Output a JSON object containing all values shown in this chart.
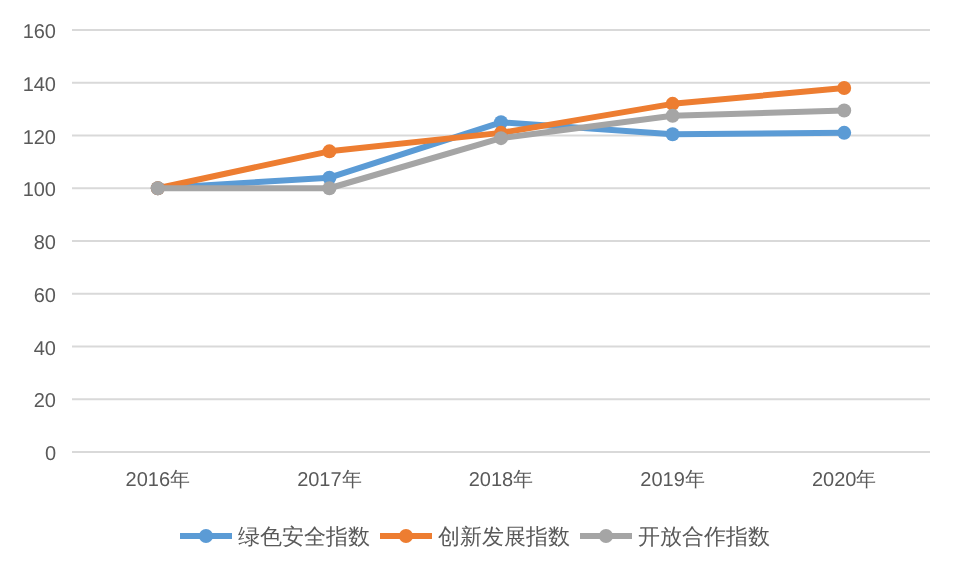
{
  "chart_data": {
    "type": "line",
    "categories": [
      "2016年",
      "2017年",
      "2018年",
      "2019年",
      "2020年"
    ],
    "series": [
      {
        "name": "绿色安全指数",
        "color": "#5b9bd5",
        "values": [
          100,
          104,
          125,
          120.5,
          121
        ]
      },
      {
        "name": "创新发展指数",
        "color": "#ed7d31",
        "values": [
          100,
          114,
          121,
          132,
          138
        ]
      },
      {
        "name": "开放合作指数",
        "color": "#a5a5a5",
        "values": [
          100,
          100,
          119,
          127.5,
          129.5
        ]
      }
    ],
    "ylim": [
      0,
      160
    ],
    "yticks": [
      0,
      20,
      40,
      60,
      80,
      100,
      120,
      140,
      160
    ],
    "grid": "y",
    "legend": "bottom",
    "marker": "circle",
    "line_style": "solid"
  }
}
